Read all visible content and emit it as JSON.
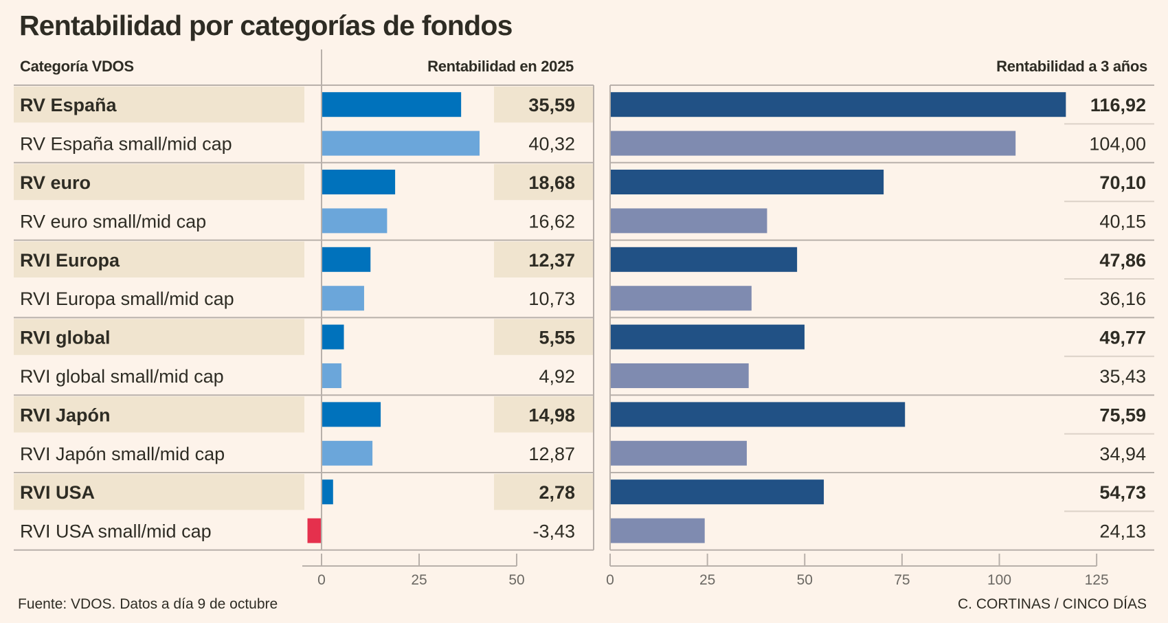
{
  "title": "Rentabilidad por categorías de fondos",
  "headers": {
    "category": "Categoría VDOS",
    "ytd": "Rentabilidad en 2025",
    "three_years": "Rentabilidad a 3 años"
  },
  "footer": {
    "source": "Fuente: VDOS. Datos a día 9 de octubre",
    "credit": "C. CORTINAS / CINCO DÍAS"
  },
  "colors": {
    "background": "#fdf3ea",
    "shade": "#f0e4cf",
    "ytd_main": "#0072bc",
    "ytd_small": "#6ba6da",
    "negative": "#e5304d",
    "three_main": "#215185",
    "three_small": "#7f8bb0",
    "grid": "#b8b0aa",
    "subgrid": "#dcd2c8",
    "text": "#2e2c24",
    "tick_text": "#6b6863"
  },
  "chart_data": [
    {
      "type": "bar",
      "orientation": "horizontal",
      "title": "Rentabilidad en 2025",
      "categories": [
        "RV España",
        "RV España small/mid cap",
        "RV euro",
        "RV euro small/mid cap",
        "RVI Europa",
        "RVI Europa small/mid cap",
        "RVI global",
        "RVI global small/mid cap",
        "RVI Japón",
        "RVI Japón small/mid cap",
        "RVI USA",
        "RVI USA small/mid cap"
      ],
      "values": [
        35.59,
        40.32,
        18.68,
        16.62,
        12.37,
        10.73,
        5.55,
        4.92,
        14.98,
        12.87,
        2.78,
        -3.43
      ],
      "labels": [
        "35,59",
        "40,32",
        "18,68",
        "16,62",
        "12,37",
        "10,73",
        "5,55",
        "4,92",
        "14,98",
        "12,87",
        "2,78",
        "-3,43"
      ],
      "xlim": [
        -5,
        50
      ],
      "ticks": [
        0,
        25,
        50
      ],
      "tick_labels": [
        "0",
        "25",
        "50"
      ]
    },
    {
      "type": "bar",
      "orientation": "horizontal",
      "title": "Rentabilidad a 3 años",
      "categories": [
        "RV España",
        "RV España small/mid cap",
        "RV euro",
        "RV euro small/mid cap",
        "RVI Europa",
        "RVI Europa small/mid cap",
        "RVI global",
        "RVI global small/mid cap",
        "RVI Japón",
        "RVI Japón small/mid cap",
        "RVI USA",
        "RVI USA small/mid cap"
      ],
      "values": [
        116.92,
        104.0,
        70.1,
        40.15,
        47.86,
        36.16,
        49.77,
        35.43,
        75.59,
        34.94,
        54.73,
        24.13
      ],
      "labels": [
        "116,92",
        "104,00",
        "70,10",
        "40,15",
        "47,86",
        "36,16",
        "49,77",
        "35,43",
        "75,59",
        "34,94",
        "54,73",
        "24,13"
      ],
      "xlim": [
        0,
        125
      ],
      "ticks": [
        0,
        25,
        50,
        75,
        100,
        125
      ],
      "tick_labels": [
        "0",
        "25",
        "50",
        "75",
        "100",
        "125"
      ]
    }
  ],
  "rows": [
    {
      "label": "RV España",
      "main": true
    },
    {
      "label": "RV España small/mid cap",
      "main": false
    },
    {
      "label": "RV euro",
      "main": true
    },
    {
      "label": "RV euro small/mid cap",
      "main": false
    },
    {
      "label": "RVI Europa",
      "main": true
    },
    {
      "label": "RVI Europa small/mid cap",
      "main": false
    },
    {
      "label": "RVI global",
      "main": true
    },
    {
      "label": "RVI global small/mid cap",
      "main": false
    },
    {
      "label": "RVI Japón",
      "main": true
    },
    {
      "label": "RVI Japón small/mid cap",
      "main": false
    },
    {
      "label": "RVI USA",
      "main": true
    },
    {
      "label": "RVI USA small/mid cap",
      "main": false
    }
  ]
}
